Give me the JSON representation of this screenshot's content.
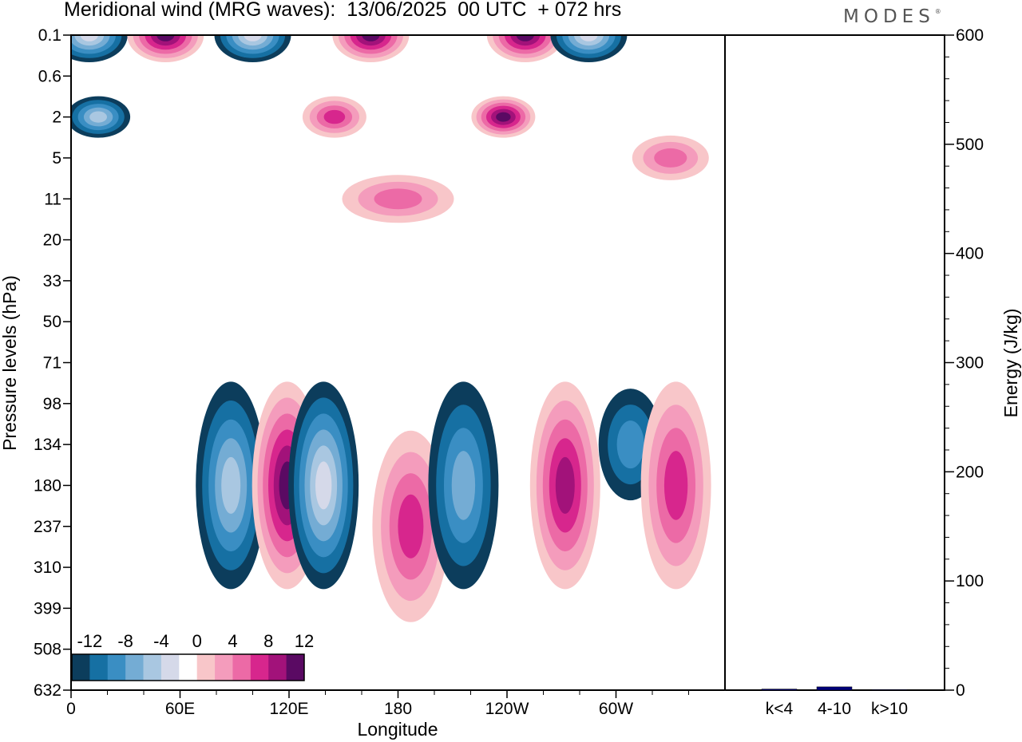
{
  "title": "Meridional wind (MRG waves):  13/06/2025  00 UTC  + 072 hrs",
  "logo": "MODES",
  "logo_mark": "®",
  "colors": {
    "neg": [
      "#0c3d5c",
      "#1670a3",
      "#3a8ec3",
      "#74acd4",
      "#a9c7e1",
      "#d5d9e9"
    ],
    "pos": [
      "#f8c6c9",
      "#f49cbc",
      "#ec6aa6",
      "#d7268d",
      "#a2127a",
      "#5a0a63"
    ],
    "bar": "#00007a"
  },
  "chart_data": [
    {
      "type": "heatmap",
      "title": "Meridional wind (MRG waves):  13/06/2025  00 UTC  + 072 hrs",
      "xlabel": "Longitude",
      "ylabel": "Pressure levels (hPa)",
      "x_ticks": [
        "0",
        "60E",
        "120E",
        "180",
        "120W",
        "60W"
      ],
      "x_tick_values": [
        0,
        60,
        120,
        180,
        240,
        300
      ],
      "xlim": [
        0,
        360
      ],
      "y_ticks": [
        "0.1",
        "0.6",
        "2",
        "5",
        "11",
        "20",
        "33",
        "50",
        "71",
        "98",
        "134",
        "180",
        "237",
        "310",
        "399",
        "508",
        "632"
      ],
      "colorbar": {
        "tick_labels": [
          "-12",
          "-8",
          "-4",
          "0",
          "4",
          "8",
          "12"
        ],
        "levels": [
          -14,
          -12,
          -10,
          -8,
          -6,
          -4,
          -2,
          2,
          4,
          6,
          8,
          10,
          12,
          14
        ]
      },
      "features": [
        {
          "lon": 10,
          "level": "0.1",
          "sign": "negative",
          "peak": -14
        },
        {
          "lon": 52,
          "level": "0.1",
          "sign": "positive",
          "peak": 14
        },
        {
          "lon": 100,
          "level": "0.1",
          "sign": "negative",
          "peak": -14
        },
        {
          "lon": 165,
          "level": "0.1",
          "sign": "positive",
          "peak": 14
        },
        {
          "lon": 250,
          "level": "0.1",
          "sign": "positive",
          "peak": 14
        },
        {
          "lon": 285,
          "level": "0.1",
          "sign": "negative",
          "peak": -14
        },
        {
          "lon": 15,
          "level": "2",
          "sign": "negative",
          "peak": -10
        },
        {
          "lon": 238,
          "level": "2",
          "sign": "positive",
          "peak": 12
        },
        {
          "lon": 145,
          "level": "2",
          "sign": "positive",
          "peak": 8
        },
        {
          "lon": 330,
          "level": "5",
          "sign": "positive",
          "peak": 6
        },
        {
          "lon": 180,
          "level": "11",
          "sign": "positive",
          "peak": 6
        },
        {
          "lon": 88,
          "level": "180",
          "sign": "negative",
          "peak": -10
        },
        {
          "lon": 119,
          "level": "180",
          "sign": "positive",
          "peak": 14
        },
        {
          "lon": 139,
          "level": "180",
          "sign": "negative",
          "peak": -14
        },
        {
          "lon": 187,
          "level": "237",
          "sign": "positive",
          "peak": 8
        },
        {
          "lon": 216,
          "level": "180",
          "sign": "negative",
          "peak": -8
        },
        {
          "lon": 272,
          "level": "180",
          "sign": "positive",
          "peak": 10
        },
        {
          "lon": 308,
          "level": "134",
          "sign": "negative",
          "peak": -6
        },
        {
          "lon": 333,
          "level": "180",
          "sign": "positive",
          "peak": 8
        }
      ]
    },
    {
      "type": "bar",
      "categories": [
        "k<4",
        "4-10",
        "k>10"
      ],
      "values": [
        1,
        3,
        0.5
      ],
      "ylabel": "Energy (J/kg)",
      "ylim": [
        0,
        600
      ],
      "y_ticks": [
        0,
        100,
        200,
        300,
        400,
        500,
        600
      ]
    }
  ]
}
